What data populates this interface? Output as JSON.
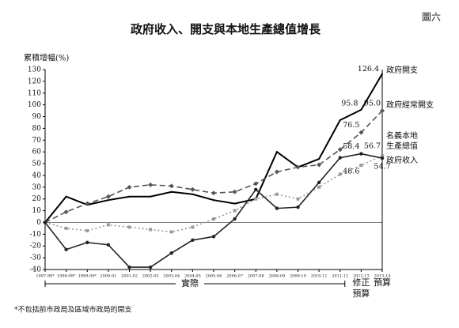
{
  "chart_data": {
    "type": "line",
    "title": "政府收入、開支與本地生產總值增長",
    "figure_label": "圖六",
    "y_label": "累積增幅(%)",
    "categories": [
      "1997-98*",
      "1998-99*",
      "1999-00*",
      "2000-01",
      "2001-02",
      "2002-03",
      "2003-04",
      "2004-05",
      "2005-06",
      "2006-07",
      "2007-08",
      "2008-09",
      "2009-10",
      "2010-11",
      "2011-12",
      "2012-13",
      "2013-14"
    ],
    "actual_label": "實際",
    "revised_label": [
      "修正",
      "預算"
    ],
    "budget_label": "預算",
    "footnote": "*不包括前市政局及區域市政局的開支",
    "ylim": [
      -40,
      130
    ],
    "yticks": [
      -40,
      -30,
      -20,
      -10,
      0,
      10,
      20,
      30,
      40,
      50,
      60,
      70,
      80,
      90,
      100,
      110,
      120,
      130
    ],
    "grid": false,
    "series": [
      {
        "name": "政府開支",
        "color": "#000000",
        "dash": false,
        "marker": "none",
        "values": [
          0,
          22,
          15,
          19,
          22,
          22,
          26,
          24,
          19,
          16,
          20,
          60,
          47,
          54,
          87,
          95.8,
          126.4
        ],
        "value_labels": [
          null,
          null,
          null,
          null,
          null,
          null,
          null,
          null,
          null,
          null,
          null,
          null,
          null,
          null,
          null,
          "95.8",
          "126.4"
        ]
      },
      {
        "name": "政府經常開支",
        "color": "#555555",
        "dash": true,
        "marker": "diamond",
        "values": [
          0,
          9,
          16,
          22,
          30,
          32,
          31,
          28,
          25,
          26,
          33,
          43,
          47,
          49,
          62,
          76.5,
          95.0
        ],
        "value_labels": [
          null,
          null,
          null,
          null,
          null,
          null,
          null,
          null,
          null,
          null,
          null,
          null,
          null,
          null,
          null,
          "76.5",
          "95.0"
        ]
      },
      {
        "name": "名義本地生產總值",
        "color": "#999999",
        "dash": "dot",
        "marker": "square",
        "values": [
          0,
          -5,
          -7,
          -2,
          -4,
          -6,
          -8,
          -4,
          3,
          10,
          20,
          24,
          20,
          30,
          41,
          48.6,
          56.7
        ],
        "value_labels": [
          null,
          null,
          null,
          null,
          null,
          null,
          null,
          null,
          null,
          null,
          null,
          null,
          null,
          null,
          null,
          "48.6",
          "56.7"
        ]
      },
      {
        "name": "政府收入",
        "color": "#222222",
        "dash": false,
        "marker": "circle",
        "values": [
          0,
          -23,
          -17,
          -19,
          -38,
          -38,
          -26,
          -15,
          -12,
          3,
          28,
          12,
          13,
          34,
          55,
          58.4,
          54.7
        ],
        "value_labels": [
          null,
          null,
          null,
          null,
          null,
          null,
          null,
          null,
          null,
          null,
          null,
          null,
          null,
          null,
          null,
          "58.4",
          "54.7"
        ]
      }
    ]
  }
}
